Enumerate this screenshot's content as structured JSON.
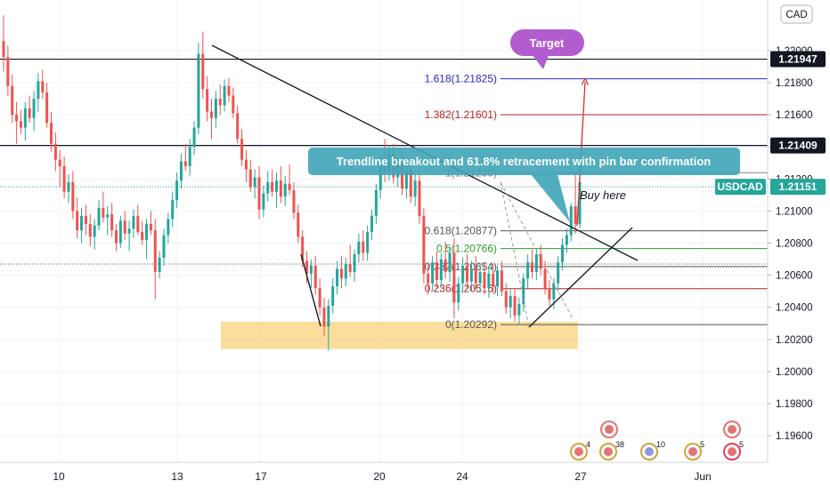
{
  "chart_data": {
    "type": "candlestick",
    "symbol": "USDCAD",
    "currency_button": "CAD",
    "y_ticks": [
      "1.22000",
      "1.21800",
      "1.21600",
      "1.21400",
      "1.21200",
      "1.21000",
      "1.20800",
      "1.20600",
      "1.20400",
      "1.20200",
      "1.20000",
      "1.19800",
      "1.19600"
    ],
    "y_tick_values": [
      1.22,
      1.218,
      1.216,
      1.214,
      1.212,
      1.21,
      1.208,
      1.206,
      1.204,
      1.202,
      1.2,
      1.198,
      1.196
    ],
    "ylim": [
      1.1946,
      1.2232
    ],
    "x_ticks": [
      "10",
      "13",
      "17",
      "20",
      "24",
      "27",
      "Jun"
    ],
    "price_labels": [
      {
        "text": "1.21947",
        "value": 1.21947,
        "style": "dark"
      },
      {
        "text": "1.21409",
        "value": 1.21409,
        "style": "dark"
      },
      {
        "text": "1.21151",
        "value": 1.21151,
        "style": "teal",
        "symbol": "USDCAD"
      }
    ],
    "horizontal_lines": [
      1.21947,
      1.21409
    ],
    "current_price": 1.21151,
    "fibonacci": [
      {
        "label": "1.618(1.21825)",
        "level": 1.21825,
        "color": "#2929c8"
      },
      {
        "label": "1.382(1.21601)",
        "level": 1.21601,
        "color": "#b22222"
      },
      {
        "label": "1(1.21239)",
        "level": 1.21239,
        "color": "#808080"
      },
      {
        "label": "0.618(1.20877)",
        "level": 1.20877,
        "color": "#555555"
      },
      {
        "label": "0.5(1.20766)",
        "level": 1.20766,
        "color": "#2e9e2e"
      },
      {
        "label": "0.382(1.20654)",
        "level": 1.20654,
        "color": "#555555"
      },
      {
        "label": "0.236(1.20516)",
        "level": 1.20516,
        "color": "#b22222"
      },
      {
        "label": "0(1.20292)",
        "level": 1.20292,
        "color": "#555555"
      }
    ],
    "support_zone": [
      1.2014,
      1.2031
    ],
    "annotations": {
      "target": "Target",
      "callout": "Trendline breakout and 61.8% retracement with pin bar confirmation",
      "buy_here": "Buy here"
    },
    "events": [
      {
        "count": "4"
      },
      {
        "count": "38"
      },
      {
        "count": "10"
      },
      {
        "count": "5"
      },
      {
        "count": "5"
      }
    ],
    "candles": [
      [
        1.2206,
        1.2222,
        1.2187,
        1.2196
      ],
      [
        1.2196,
        1.2203,
        1.2172,
        1.2178
      ],
      [
        1.2178,
        1.2185,
        1.2155,
        1.216
      ],
      [
        1.216,
        1.2168,
        1.2142,
        1.2156
      ],
      [
        1.2156,
        1.2163,
        1.2148,
        1.2152
      ],
      [
        1.2152,
        1.2168,
        1.2144,
        1.2164
      ],
      [
        1.2164,
        1.2172,
        1.2155,
        1.2158
      ],
      [
        1.2158,
        1.2175,
        1.215,
        1.217
      ],
      [
        1.217,
        1.2186,
        1.2162,
        1.2181
      ],
      [
        1.2181,
        1.2188,
        1.217,
        1.2174
      ],
      [
        1.2174,
        1.218,
        1.2152,
        1.2155
      ],
      [
        1.2155,
        1.2162,
        1.2137,
        1.2142
      ],
      [
        1.2142,
        1.2149,
        1.2125,
        1.2132
      ],
      [
        1.2132,
        1.2138,
        1.2115,
        1.2128
      ],
      [
        1.2128,
        1.2134,
        1.2108,
        1.2112
      ],
      [
        1.2112,
        1.2123,
        1.2105,
        1.2118
      ],
      [
        1.2118,
        1.2125,
        1.2095,
        1.21
      ],
      [
        1.21,
        1.2108,
        1.2083,
        1.2088
      ],
      [
        1.2088,
        1.2102,
        1.208,
        1.2097
      ],
      [
        1.2097,
        1.2104,
        1.2085,
        1.2092
      ],
      [
        1.2092,
        1.2098,
        1.2078,
        1.2084
      ],
      [
        1.2084,
        1.2095,
        1.2076,
        1.2091
      ],
      [
        1.2091,
        1.2107,
        1.2088,
        1.2102
      ],
      [
        1.2102,
        1.2112,
        1.2093,
        1.2096
      ],
      [
        1.2096,
        1.2103,
        1.2085,
        1.2098
      ],
      [
        1.2098,
        1.2105,
        1.2084,
        1.2088
      ],
      [
        1.2088,
        1.2092,
        1.2075,
        1.208
      ],
      [
        1.208,
        1.2097,
        1.2077,
        1.2094
      ],
      [
        1.2094,
        1.21,
        1.2082,
        1.2086
      ],
      [
        1.2086,
        1.2094,
        1.2075,
        1.2089
      ],
      [
        1.2089,
        1.2101,
        1.2083,
        1.2097
      ],
      [
        1.2097,
        1.2104,
        1.2085,
        1.2087
      ],
      [
        1.2087,
        1.2094,
        1.2079,
        1.2082
      ],
      [
        1.2082,
        1.2095,
        1.207,
        1.2092
      ],
      [
        1.2092,
        1.21,
        1.2085,
        1.2088
      ],
      [
        1.2088,
        1.2095,
        1.2045,
        1.2062
      ],
      [
        1.2062,
        1.2075,
        1.2058,
        1.2071
      ],
      [
        1.2071,
        1.2089,
        1.2066,
        1.2085
      ],
      [
        1.2085,
        1.2099,
        1.208,
        1.2095
      ],
      [
        1.2095,
        1.2112,
        1.209,
        1.2107
      ],
      [
        1.2107,
        1.2124,
        1.2102,
        1.2119
      ],
      [
        1.2119,
        1.2136,
        1.2114,
        1.2131
      ],
      [
        1.2131,
        1.2142,
        1.2125,
        1.2128
      ],
      [
        1.2128,
        1.2145,
        1.2122,
        1.214
      ],
      [
        1.214,
        1.2156,
        1.2135,
        1.2152
      ],
      [
        1.2152,
        1.2205,
        1.2148,
        1.2198
      ],
      [
        1.2198,
        1.2212,
        1.217,
        1.2176
      ],
      [
        1.2176,
        1.2184,
        1.2156,
        1.2162
      ],
      [
        1.2162,
        1.217,
        1.2145,
        1.2158
      ],
      [
        1.2158,
        1.2175,
        1.2152,
        1.217
      ],
      [
        1.217,
        1.2179,
        1.216,
        1.2166
      ],
      [
        1.2166,
        1.2182,
        1.2162,
        1.2178
      ],
      [
        1.2178,
        1.2183,
        1.2168,
        1.2172
      ],
      [
        1.2172,
        1.2177,
        1.2158,
        1.2161
      ],
      [
        1.2161,
        1.2166,
        1.2142,
        1.2145
      ],
      [
        1.2145,
        1.2151,
        1.2128,
        1.2132
      ],
      [
        1.2132,
        1.2138,
        1.2118,
        1.2126
      ],
      [
        1.2126,
        1.2132,
        1.2112,
        1.2115
      ],
      [
        1.2115,
        1.2126,
        1.2108,
        1.2121
      ],
      [
        1.2121,
        1.2128,
        1.2095,
        1.2101
      ],
      [
        1.2101,
        1.2116,
        1.2096,
        1.2111
      ],
      [
        1.2111,
        1.2125,
        1.2106,
        1.2118
      ],
      [
        1.2118,
        1.2126,
        1.2109,
        1.2112
      ],
      [
        1.2112,
        1.2124,
        1.2102,
        1.2119
      ],
      [
        1.2119,
        1.2128,
        1.2105,
        1.2109
      ],
      [
        1.2109,
        1.2122,
        1.2103,
        1.2117
      ],
      [
        1.2117,
        1.2129,
        1.211,
        1.2113
      ],
      [
        1.2113,
        1.2118,
        1.2095,
        1.2099
      ],
      [
        1.2099,
        1.2104,
        1.208,
        1.2084
      ],
      [
        1.2084,
        1.2088,
        1.2065,
        1.2069
      ],
      [
        1.2069,
        1.2075,
        1.2055,
        1.2061
      ],
      [
        1.2061,
        1.207,
        1.2052,
        1.2066
      ],
      [
        1.2066,
        1.2072,
        1.2048,
        1.2052
      ],
      [
        1.2052,
        1.2058,
        1.2035,
        1.204
      ],
      [
        1.204,
        1.2046,
        1.2022,
        1.2028
      ],
      [
        1.2028,
        1.2045,
        1.2013,
        1.2041
      ],
      [
        1.2041,
        1.2058,
        1.2036,
        1.2053
      ],
      [
        1.2053,
        1.2069,
        1.2048,
        1.2064
      ],
      [
        1.2064,
        1.2072,
        1.2052,
        1.2058
      ],
      [
        1.2058,
        1.2071,
        1.2053,
        1.2067
      ],
      [
        1.2067,
        1.2079,
        1.2059,
        1.2062
      ],
      [
        1.2062,
        1.2076,
        1.2056,
        1.2073
      ],
      [
        1.2073,
        1.2086,
        1.2068,
        1.2081
      ],
      [
        1.2081,
        1.2088,
        1.2069,
        1.2074
      ],
      [
        1.2074,
        1.2091,
        1.2069,
        1.2087
      ],
      [
        1.2087,
        1.2101,
        1.2082,
        1.2097
      ],
      [
        1.2097,
        1.2117,
        1.2092,
        1.2113
      ],
      [
        1.2113,
        1.2134,
        1.2108,
        1.2129
      ],
      [
        1.2129,
        1.2145,
        1.2118,
        1.2124
      ],
      [
        1.2124,
        1.2141,
        1.2119,
        1.2136
      ],
      [
        1.2136,
        1.2142,
        1.2117,
        1.2121
      ],
      [
        1.2121,
        1.2134,
        1.2115,
        1.213
      ],
      [
        1.213,
        1.2137,
        1.211,
        1.2114
      ],
      [
        1.2114,
        1.213,
        1.2108,
        1.2126
      ],
      [
        1.2126,
        1.2132,
        1.2105,
        1.2109
      ],
      [
        1.2109,
        1.2124,
        1.2103,
        1.2119
      ],
      [
        1.2119,
        1.2125,
        1.2092,
        1.2097
      ],
      [
        1.2097,
        1.2102,
        1.2055,
        1.2061
      ],
      [
        1.2061,
        1.2068,
        1.2048,
        1.2055
      ],
      [
        1.2055,
        1.2072,
        1.205,
        1.2068
      ],
      [
        1.2068,
        1.2075,
        1.2052,
        1.2057
      ],
      [
        1.2057,
        1.2074,
        1.2052,
        1.207
      ],
      [
        1.207,
        1.2081,
        1.2058,
        1.2062
      ],
      [
        1.2062,
        1.2078,
        1.2056,
        1.2074
      ],
      [
        1.2074,
        1.2083,
        1.2033,
        1.2043
      ],
      [
        1.2043,
        1.2059,
        1.2038,
        1.2055
      ],
      [
        1.2055,
        1.2071,
        1.2049,
        1.2066
      ],
      [
        1.2066,
        1.2073,
        1.2052,
        1.2056
      ],
      [
        1.2056,
        1.2069,
        1.205,
        1.2064
      ],
      [
        1.2064,
        1.2072,
        1.2051,
        1.2055
      ],
      [
        1.2055,
        1.2067,
        1.2049,
        1.2062
      ],
      [
        1.2062,
        1.2068,
        1.2048,
        1.2052
      ],
      [
        1.2052,
        1.2065,
        1.2046,
        1.2061
      ],
      [
        1.2061,
        1.2067,
        1.2049,
        1.2053
      ],
      [
        1.2053,
        1.2066,
        1.2047,
        1.2063
      ],
      [
        1.2063,
        1.2069,
        1.2047,
        1.205
      ],
      [
        1.205,
        1.2055,
        1.2036,
        1.204
      ],
      [
        1.204,
        1.2051,
        1.2033,
        1.2047
      ],
      [
        1.2047,
        1.2052,
        1.2031,
        1.2035
      ],
      [
        1.2035,
        1.2046,
        1.2029,
        1.2042
      ],
      [
        1.2042,
        1.2061,
        1.2037,
        1.2058
      ],
      [
        1.2058,
        1.2073,
        1.2052,
        1.2068
      ],
      [
        1.2068,
        1.2076,
        1.2058,
        1.2062
      ],
      [
        1.2062,
        1.2077,
        1.2057,
        1.2073
      ],
      [
        1.2073,
        1.2079,
        1.206,
        1.2064
      ],
      [
        1.2064,
        1.2069,
        1.2048,
        1.2052
      ],
      [
        1.2052,
        1.2057,
        1.2041,
        1.2045
      ],
      [
        1.2045,
        1.2058,
        1.2039,
        1.2055
      ],
      [
        1.2055,
        1.2072,
        1.205,
        1.2068
      ],
      [
        1.2068,
        1.2083,
        1.2063,
        1.2079
      ],
      [
        1.2079,
        1.2089,
        1.2074,
        1.2085
      ],
      [
        1.2085,
        1.2105,
        1.2081,
        1.2103
      ],
      [
        1.2103,
        1.2124,
        1.2086,
        1.2092
      ],
      [
        1.2092,
        1.2128,
        1.2089,
        1.2118
      ]
    ]
  }
}
